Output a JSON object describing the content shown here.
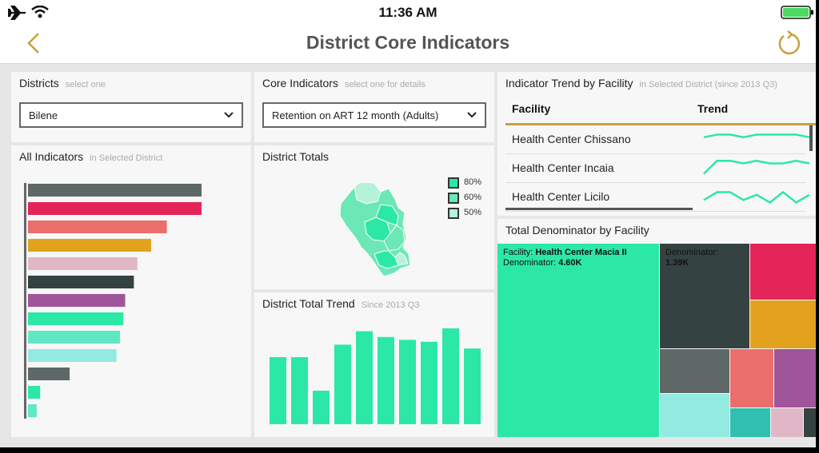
{
  "status": {
    "time": "11:36 AM",
    "airplane_icon": "airplane-icon",
    "wifi_icon": "wifi-icon",
    "battery_icon": "battery-icon"
  },
  "nav": {
    "title": "District Core Indicators",
    "back_icon": "chevron-left-icon",
    "refresh_icon": "refresh-icon",
    "accent": "#c8a040"
  },
  "districts": {
    "title": "Districts",
    "hint": "select one",
    "selected": "Bilene"
  },
  "core": {
    "title": "Core Indicators",
    "hint": "select one for details",
    "selected": "Retention on ART 12 month (Adults)"
  },
  "all_indicators": {
    "title": "All Indicators",
    "hint": "in Selected District",
    "chart_data": {
      "type": "bar",
      "orientation": "horizontal",
      "values": [
        100,
        100,
        80,
        71,
        63,
        61,
        56,
        55,
        53,
        51,
        24,
        7,
        5
      ],
      "colors": [
        "#5e6866",
        "#e3255a",
        "#ea6e6c",
        "#e2a21e",
        "#e0b7c6",
        "#344341",
        "#a0559a",
        "#2ce8a6",
        "#5fe8c3",
        "#93eae1",
        "#5e6866",
        "#2ce8a6",
        "#5fe8c3"
      ]
    }
  },
  "totals": {
    "title": "District Totals",
    "legend": [
      {
        "label": "80%",
        "color": "#2ce8a6"
      },
      {
        "label": "60%",
        "color": "#6ce8b6"
      },
      {
        "label": "50%",
        "color": "#b6f2da"
      }
    ]
  },
  "trend": {
    "title": "District Total Trend",
    "hint": "Since 2013 Q3",
    "chart_data": {
      "type": "bar",
      "values": [
        70,
        70,
        35,
        83,
        97,
        91,
        88,
        86,
        100,
        79
      ],
      "ylim": [
        0,
        100
      ],
      "color": "#2ce8a6"
    }
  },
  "facility_trend": {
    "title": "Indicator Trend by Facility",
    "hint": "in Selected District (since 2013 Q3)",
    "col_facility": "Facility",
    "col_trend": "Trend",
    "rows": [
      {
        "name": "Health Center Chissano",
        "trend": [
          5,
          6,
          6,
          5,
          6,
          6,
          6,
          6,
          5
        ]
      },
      {
        "name": "Health Center Incaia",
        "trend": [
          2,
          7,
          7,
          6,
          7,
          6,
          6,
          7,
          6
        ]
      },
      {
        "name": "Health Center Licilo",
        "trend": [
          3,
          6,
          6,
          3,
          5,
          2,
          6,
          2,
          5
        ]
      }
    ]
  },
  "denominator": {
    "title": "Total Denominator by Facility",
    "tile1": {
      "facility_label": "Facility:",
      "facility": "Health Center Macia II",
      "denominator_label": "Denominator:",
      "value": "4.60K"
    },
    "tile2": {
      "denominator_label": "Denominator:",
      "value": "1.39K"
    }
  }
}
